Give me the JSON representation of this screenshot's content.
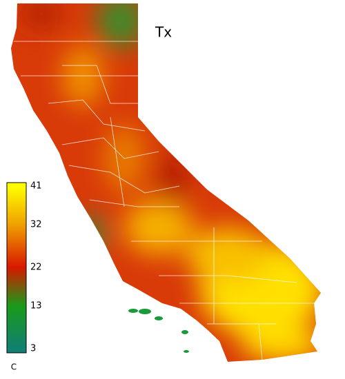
{
  "title": "Tx",
  "colorbar": {
    "range": [
      3,
      41
    ],
    "ticks": [
      41,
      32,
      22,
      13,
      3
    ],
    "colors": [
      "#ffff00",
      "#f0a000",
      "#d81800",
      "#1a9a1a",
      "#108070"
    ],
    "unit": "C"
  }
}
